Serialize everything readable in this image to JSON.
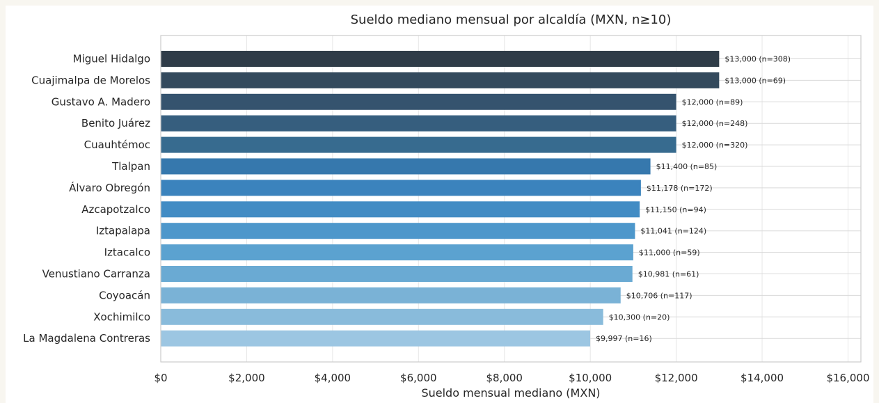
{
  "chart_data": {
    "type": "bar",
    "orientation": "horizontal",
    "title": "Sueldo mediano mensual por alcaldía (MXN, n≥10)",
    "xlabel": "Sueldo mensual mediano (MXN)",
    "ylabel": "",
    "xlim": [
      0,
      16300
    ],
    "x_ticks": [
      0,
      2000,
      4000,
      6000,
      8000,
      10000,
      12000,
      14000,
      16000
    ],
    "x_tick_labels": [
      "$0",
      "$2,000",
      "$4,000",
      "$6,000",
      "$8,000",
      "$10,000",
      "$12,000",
      "$14,000",
      "$16,000"
    ],
    "grid": true,
    "categories": [
      "Miguel Hidalgo",
      "Cuajimalpa de Morelos",
      "Gustavo A. Madero",
      "Benito Juárez",
      "Cuauhtémoc",
      "Tlalpan",
      "Álvaro Obregón",
      "Azcapotzalco",
      "Iztapalapa",
      "Iztacalco",
      "Venustiano Carranza",
      "Coyoacán",
      "Xochimilco",
      "La Magdalena Contreras"
    ],
    "values": [
      13000,
      13000,
      12000,
      12000,
      12000,
      11400,
      11178,
      11150,
      11041,
      11000,
      10981,
      10706,
      10300,
      9997
    ],
    "data_labels": [
      "$13,000  (n=308)",
      "$13,000  (n=69)",
      "$12,000  (n=89)",
      "$12,000  (n=248)",
      "$12,000  (n=320)",
      "$11,400  (n=85)",
      "$11,178  (n=172)",
      "$11,150  (n=94)",
      "$11,041  (n=124)",
      "$11,000  (n=59)",
      "$10,981  (n=61)",
      "$10,706  (n=117)",
      "$10,300  (n=20)",
      "$9,997  (n=16)"
    ],
    "colors": [
      "#2f3c48",
      "#344a5d",
      "#35536e",
      "#365e7e",
      "#376b8f",
      "#3678ad",
      "#3b83bd",
      "#428cc4",
      "#4d97cb",
      "#5ba2d0",
      "#6aaad3",
      "#7ab2d6",
      "#89bbdb",
      "#9cc6e2"
    ]
  }
}
